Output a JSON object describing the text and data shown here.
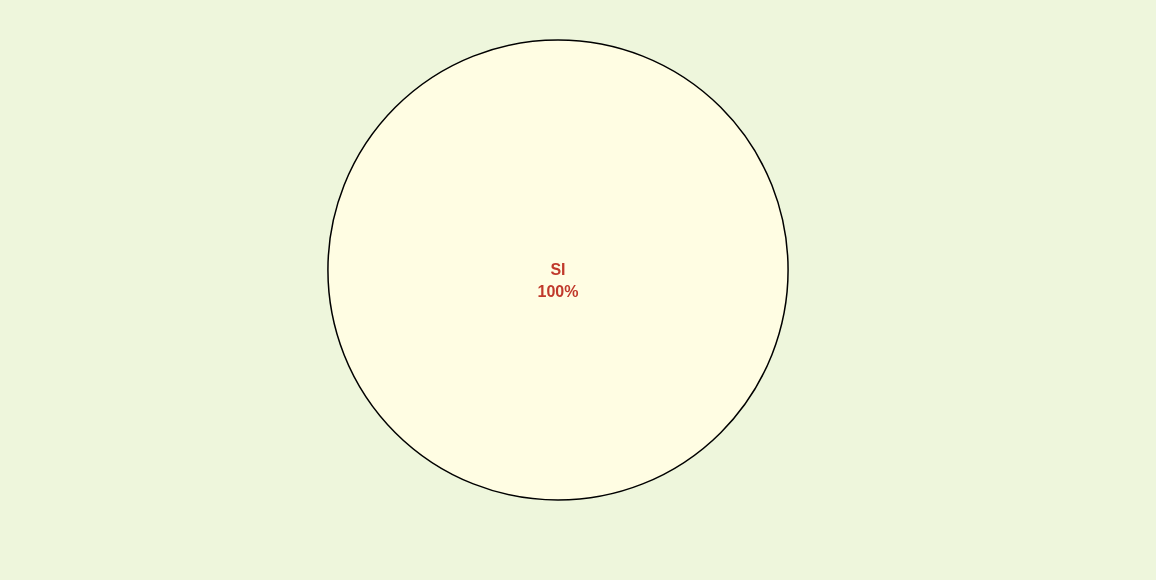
{
  "chart_data": {
    "type": "pie",
    "categories": [
      "SI"
    ],
    "values": [
      100
    ],
    "colors": [
      "#fffde3"
    ],
    "value_labels": [
      "100%"
    ]
  }
}
